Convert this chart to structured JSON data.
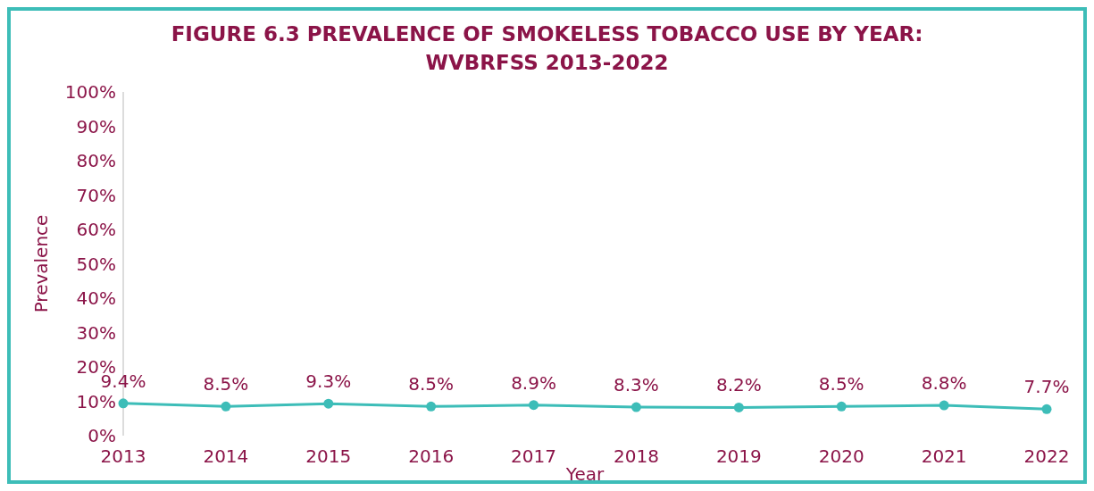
{
  "chart_data": {
    "type": "line",
    "title": "FIGURE 6.3 PREVALENCE OF SMOKELESS TOBACCO USE BY YEAR: WVBRFSS 2013-2022",
    "xlabel": "Year",
    "ylabel": "Prevalence",
    "categories": [
      "2013",
      "2014",
      "2015",
      "2016",
      "2017",
      "2018",
      "2019",
      "2020",
      "2021",
      "2022"
    ],
    "series": [
      {
        "color": "#3dbdb8",
        "values": [
          9.4,
          8.5,
          9.3,
          8.5,
          8.9,
          8.3,
          8.2,
          8.5,
          8.8,
          7.7
        ],
        "value_labels": [
          "9.4%",
          "8.5%",
          "9.3%",
          "8.5%",
          "8.9%",
          "8.3%",
          "8.2%",
          "8.5%",
          "8.8%",
          "7.7%"
        ]
      }
    ],
    "ylim": [
      0,
      100
    ],
    "yticks": [
      {
        "value": 0,
        "label": "0%"
      },
      {
        "value": 10,
        "label": "10%"
      },
      {
        "value": 20,
        "label": "20%"
      },
      {
        "value": 30,
        "label": "30%"
      },
      {
        "value": 40,
        "label": "40%"
      },
      {
        "value": 50,
        "label": "50%"
      },
      {
        "value": 60,
        "label": "60%"
      },
      {
        "value": 70,
        "label": "70%"
      },
      {
        "value": 80,
        "label": "80%"
      },
      {
        "value": 90,
        "label": "90%"
      },
      {
        "value": 100,
        "label": "100%"
      }
    ],
    "marker": "circle",
    "line_style": "solid"
  }
}
